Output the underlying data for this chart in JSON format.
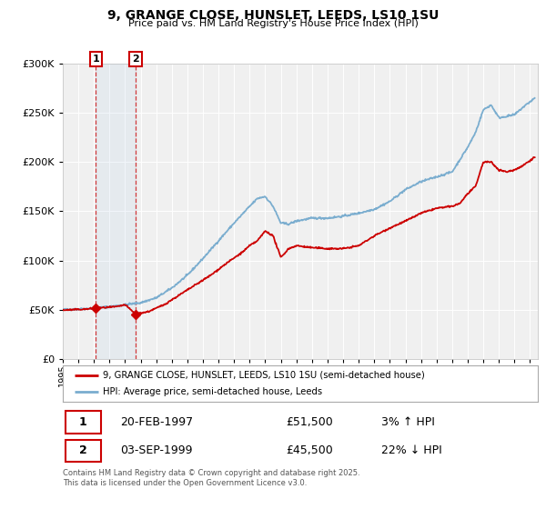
{
  "title": "9, GRANGE CLOSE, HUNSLET, LEEDS, LS10 1SU",
  "subtitle": "Price paid vs. HM Land Registry's House Price Index (HPI)",
  "legend_line1": "9, GRANGE CLOSE, HUNSLET, LEEDS, LS10 1SU (semi-detached house)",
  "legend_line2": "HPI: Average price, semi-detached house, Leeds",
  "red_color": "#cc0000",
  "blue_color": "#7aadcf",
  "sale1_date_label": "20-FEB-1997",
  "sale1_price": 51500,
  "sale1_hpi": "3% ↑ HPI",
  "sale1_x": 1997.13,
  "sale2_date_label": "03-SEP-1999",
  "sale2_price": 45500,
  "sale2_hpi": "22% ↓ HPI",
  "sale2_x": 1999.67,
  "ylim_min": 0,
  "ylim_max": 300000,
  "xlim_min": 1995.0,
  "xlim_max": 2025.5,
  "footnote": "Contains HM Land Registry data © Crown copyright and database right 2025.\nThis data is licensed under the Open Government Licence v3.0.",
  "background_color": "#ffffff",
  "plot_bg_color": "#f0f0f0",
  "hpi_waypoints_x": [
    1995.0,
    1996.0,
    1997.0,
    1998.0,
    1999.0,
    2000.0,
    2001.0,
    2002.0,
    2003.0,
    2004.0,
    2005.0,
    2006.0,
    2007.0,
    2007.5,
    2008.0,
    2008.5,
    2009.0,
    2009.5,
    2010.0,
    2011.0,
    2012.0,
    2013.0,
    2014.0,
    2015.0,
    2016.0,
    2017.0,
    2018.0,
    2019.0,
    2020.0,
    2021.0,
    2021.5,
    2022.0,
    2022.5,
    2023.0,
    2024.0,
    2024.5,
    2025.3
  ],
  "hpi_waypoints_y": [
    50000,
    50500,
    51500,
    53000,
    55000,
    57000,
    62000,
    72000,
    85000,
    102000,
    120000,
    138000,
    155000,
    163000,
    165000,
    155000,
    138000,
    137000,
    140000,
    143000,
    143000,
    145000,
    148000,
    152000,
    160000,
    172000,
    180000,
    185000,
    190000,
    215000,
    230000,
    253000,
    258000,
    245000,
    248000,
    255000,
    265000
  ],
  "red_waypoints_x": [
    1995.0,
    1996.5,
    1997.13,
    1998.5,
    1999.0,
    1999.67,
    2000.5,
    2001.5,
    2002.5,
    2003.5,
    2004.5,
    2005.5,
    2006.5,
    2007.0,
    2007.5,
    2008.0,
    2008.5,
    2009.0,
    2009.5,
    2010.0,
    2011.0,
    2012.0,
    2013.0,
    2014.0,
    2015.0,
    2016.0,
    2017.0,
    2018.0,
    2019.0,
    2020.0,
    2020.5,
    2021.0,
    2021.5,
    2022.0,
    2022.5,
    2023.0,
    2023.5,
    2024.0,
    2024.5,
    2025.3
  ],
  "red_waypoints_y": [
    49500,
    50500,
    51500,
    53000,
    55000,
    45500,
    48000,
    55000,
    65000,
    75000,
    85000,
    97000,
    108000,
    115000,
    120000,
    130000,
    125000,
    103000,
    112000,
    115000,
    113000,
    112000,
    112000,
    115000,
    125000,
    133000,
    140000,
    148000,
    153000,
    155000,
    158000,
    168000,
    175000,
    200000,
    200000,
    192000,
    190000,
    192000,
    196000,
    205000
  ]
}
